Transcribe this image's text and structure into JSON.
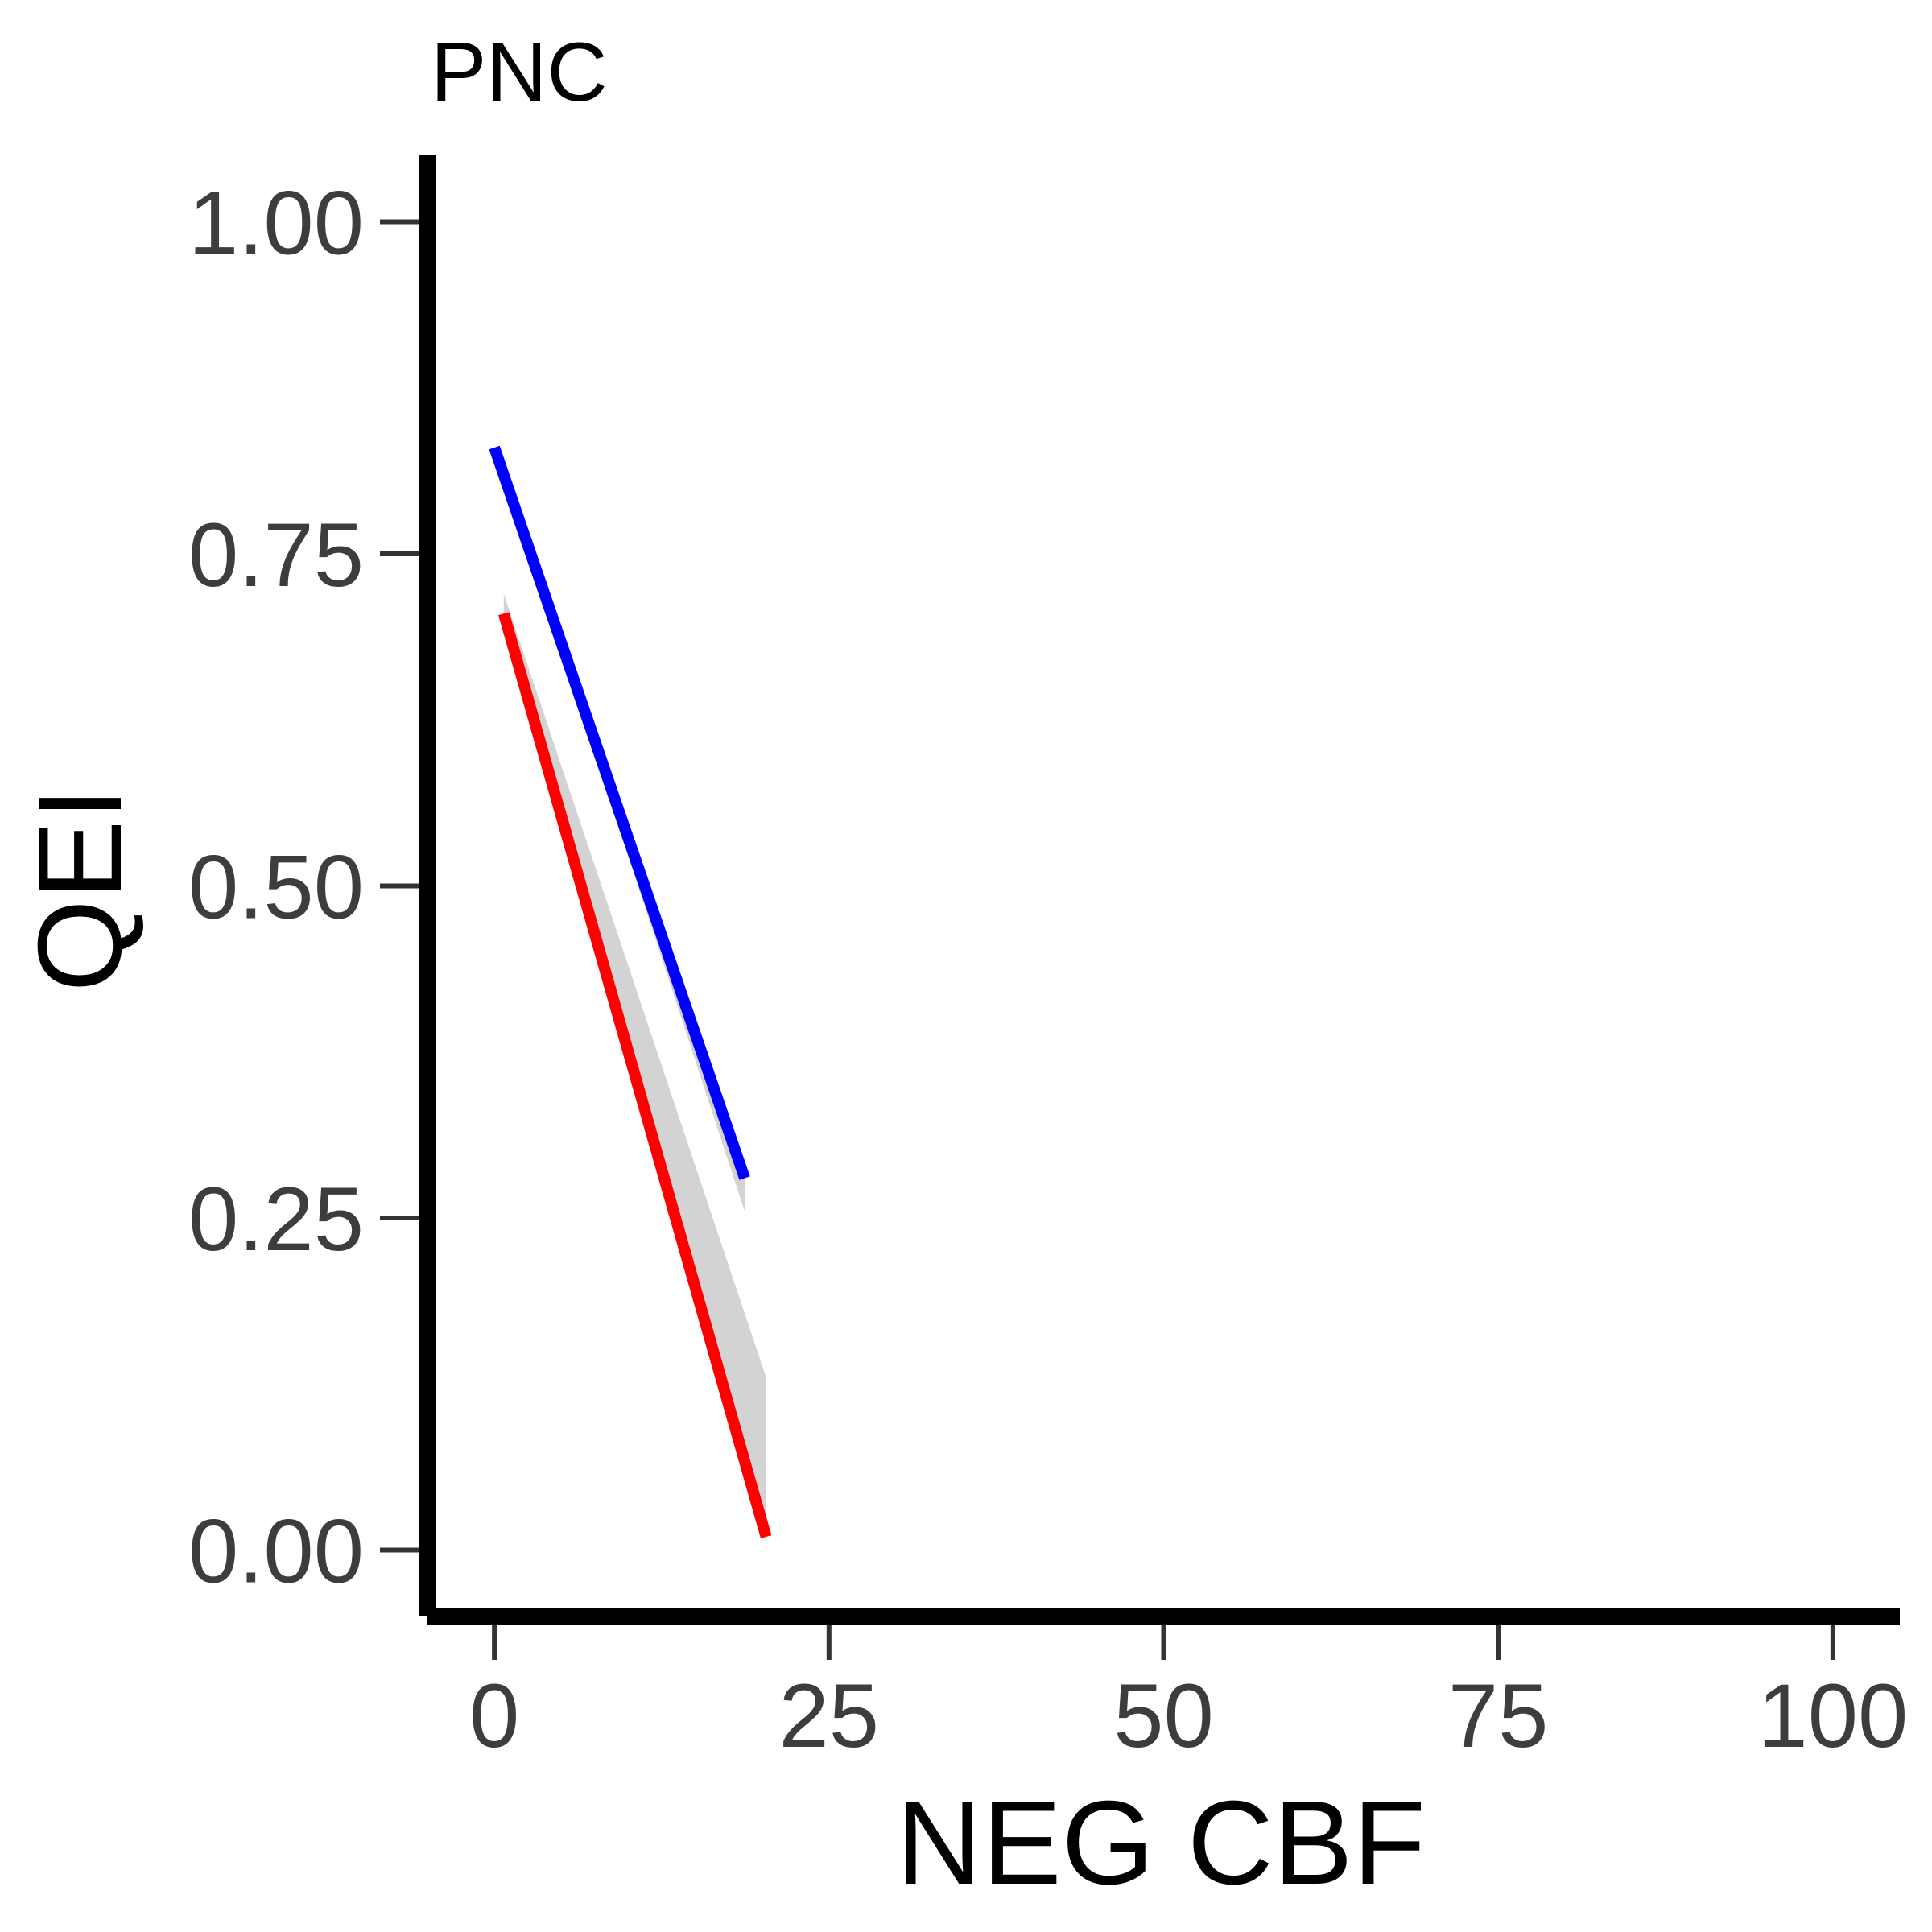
{
  "chart_data": {
    "type": "line",
    "title": "PNC",
    "xlabel": "NEG CBF",
    "ylabel": "QEI",
    "xlim": [
      -5,
      105
    ],
    "ylim": [
      -0.05,
      1.05
    ],
    "x_ticks": [
      0,
      25,
      50,
      75,
      100
    ],
    "y_ticks": [
      0.0,
      0.25,
      0.5,
      0.75,
      1.0
    ],
    "x_tick_labels": [
      "0",
      "25",
      "50",
      "75",
      "100"
    ],
    "y_tick_labels": [
      "0.00",
      "0.25",
      "0.50",
      "0.75",
      "1.00"
    ],
    "grid": false,
    "legend": "none",
    "series": [
      {
        "color": "#0000ff",
        "x": [
          0,
          18.7
        ],
        "y": [
          0.83,
          0.28
        ],
        "band_upper": [
          0.83,
          0.29
        ],
        "band_lower": [
          0.83,
          0.255
        ]
      },
      {
        "color": "#ff0000",
        "x": [
          0.7,
          20.3
        ],
        "y": [
          0.705,
          0.01
        ],
        "band_upper": [
          0.72,
          0.13
        ],
        "band_lower": [
          0.69,
          0.005
        ]
      }
    ],
    "band_color": "#d3d3d3"
  }
}
